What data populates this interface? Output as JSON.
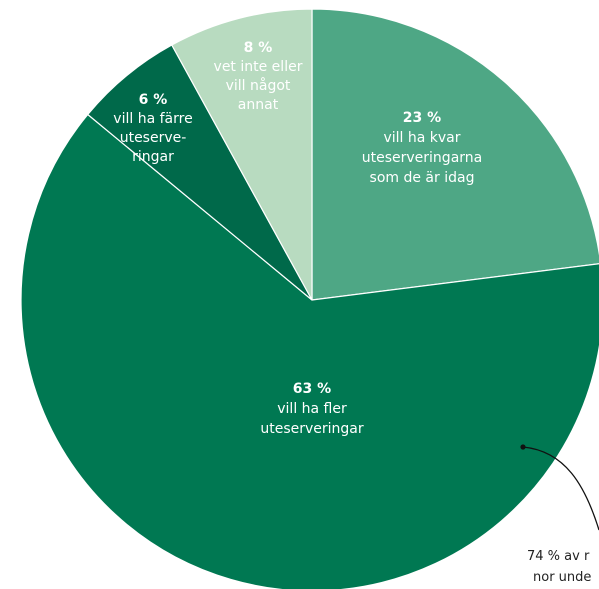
{
  "chart_data": {
    "type": "pie",
    "title": "",
    "start_angle_deg": 0,
    "direction": "clockwise",
    "slices": [
      {
        "value": 23,
        "percent_label": "23 %",
        "label_lines": [
          "vill ha kvar",
          "uteserveringarna",
          "som de är idag"
        ],
        "color": "#4ea785",
        "text_color": "#ffffff"
      },
      {
        "value": 63,
        "percent_label": "63 %",
        "label_lines": [
          "vill ha fler",
          "uteserveringar"
        ],
        "color": "#007852",
        "text_color": "#ffffff"
      },
      {
        "value": 6,
        "percent_label": "6 %",
        "label_lines": [
          "vill ha färre",
          "uteserve-",
          "ringar"
        ],
        "color": "#00694a",
        "text_color": "#ffffff"
      },
      {
        "value": 8,
        "percent_label": "8 %",
        "label_lines": [
          "vet inte eller",
          "vill något",
          "annat"
        ],
        "color": "#b8dbc0",
        "text_color": "#ffffff"
      }
    ],
    "callout": {
      "lines": [
        "74 % av r",
        "nor unde"
      ],
      "line_color": "#111111"
    }
  }
}
